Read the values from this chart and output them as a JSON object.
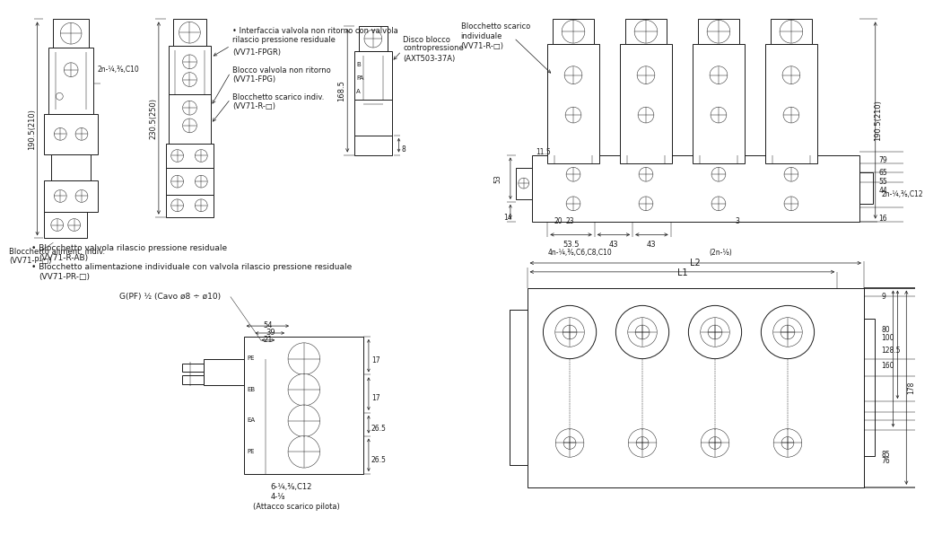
{
  "bg_color": "#ffffff",
  "lc": "#1a1a1a",
  "lw": 0.7,
  "tlw": 0.35,
  "texts": {
    "label_blocch_alim": "Blocchetto aliment. indiv.",
    "label_vv71p": "(VV71-P-□)",
    "bullet1": "• Blocchetto valvola rilascio pressione residuale",
    "bullet1b": "(VV71-R-AB)",
    "bullet2": "• Blocchetto alimentazione individuale con valvola rilascio pressione residuale",
    "bullet2b": "(VV71-PR-□)",
    "label_interf": "• Interfaccia valvola non ritorno con valvola",
    "label_rilascio": "rilascio pressione residuale",
    "label_fpgr": "(VV71-FPGR)",
    "label_blocco_nr": "Blocco valvola non ritorno",
    "label_fpg": "(VV71-FPG)",
    "label_scarico_indiv": "Blocchetto scarico indiv.",
    "label_vv71r": "(VV71-R-□)",
    "label_disco": "Disco blocco",
    "label_contro": "contropressione",
    "label_axt": "(AXT503-37A)",
    "label_blocch_scarico": "Blocchetto scarico",
    "label_individuale": "individuale",
    "label_vv71r2": "(VV71-R-□)",
    "d190": "190.5(210)",
    "d230": "230.5(250)",
    "d168": "168.5",
    "d2n_c10": "2n-¼,⅜,C10",
    "d2n_c12": "2n-¼,⅜,C12",
    "d11_5": "11.5",
    "d53": "53",
    "d14": "14",
    "d20": "20",
    "d23": "23",
    "d53_5": "53.5",
    "d43": "43",
    "d3": "3",
    "d16": "16",
    "d44": "44",
    "d55": "55",
    "d65": "65",
    "d79": "79",
    "d4n": "4n-¼,⅜,C6,C8,C10",
    "d2n_18": "(2n-⅛)",
    "d8": "8",
    "gpf": "G(PF) ½ (Cavo ø8 ÷ ø10)",
    "d54": "54",
    "d39": "39",
    "d21": "21",
    "d17": "17",
    "d26_5": "26.5",
    "d6_c12": "6-¼,⅜,C12",
    "d4_18": "4-⅛",
    "attacco": "(Attacco scarico pilota)",
    "L2": "L2",
    "L1": "L1",
    "d9": "9",
    "d100": "100",
    "d80": "80",
    "d128_5": "128.5",
    "d160": "160",
    "d178": "178",
    "d76": "76",
    "d85": "85"
  }
}
